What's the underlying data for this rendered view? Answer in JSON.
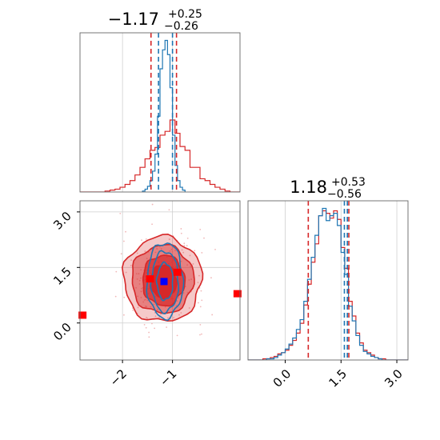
{
  "chart_data": [
    {
      "panel": "top-left",
      "type": "histogram",
      "title": {
        "median": "−1.17",
        "plus": "+0.25",
        "minus": "−0.26"
      },
      "xlim": [
        -2.85,
        0.35
      ],
      "grid": true,
      "red_lines": [
        -1.43,
        -0.92
      ],
      "blue_lines": [
        -1.28,
        -1.0
      ],
      "series": [
        {
          "color": "#d62728",
          "bins": [
            -2.85,
            -2.75,
            -2.65,
            -2.55,
            -2.45,
            -2.35,
            -2.25,
            -2.15,
            -2.05,
            -1.95,
            -1.85,
            -1.75,
            -1.65,
            -1.55,
            -1.45,
            -1.35,
            -1.25,
            -1.15,
            -1.05,
            -0.95,
            -0.85,
            -0.75,
            -0.65,
            -0.55,
            -0.45,
            -0.35,
            -0.25,
            -0.15,
            -0.05,
            0.05,
            0.15,
            0.25,
            0.35
          ],
          "counts": [
            0,
            0,
            0,
            0,
            0,
            1,
            2,
            3,
            5,
            8,
            12,
            18,
            26,
            35,
            44,
            47,
            60,
            64,
            76,
            62,
            48,
            44,
            26,
            26,
            14,
            12,
            8,
            5,
            3,
            1,
            0,
            0
          ]
        },
        {
          "color": "#1f77b4",
          "bins": [
            -1.6,
            -1.55,
            -1.5,
            -1.45,
            -1.4,
            -1.35,
            -1.3,
            -1.25,
            -1.2,
            -1.15,
            -1.1,
            -1.05,
            -1.0,
            -0.95,
            -0.9,
            -0.85,
            -0.8,
            -0.75
          ],
          "counts": [
            1,
            3,
            6,
            12,
            22,
            40,
            80,
            130,
            150,
            160,
            145,
            110,
            60,
            28,
            12,
            5,
            2
          ]
        }
      ],
      "ticks": []
    },
    {
      "panel": "bottom-left",
      "type": "scatter",
      "xlim": [
        -2.85,
        0.35
      ],
      "ylim": [
        -1.0,
        3.3
      ],
      "grid": true,
      "xticks": [
        -2,
        -1
      ],
      "xtick_labels": [
        "−2",
        "−1"
      ],
      "yticks": [
        0.0,
        1.5,
        3.0
      ],
      "ytick_labels": [
        "0.0",
        "1.5",
        "3.0"
      ],
      "center_marker": {
        "x": -1.17,
        "y": 1.12,
        "color": "#0000ff"
      },
      "red_markers": [
        {
          "x": -2.8,
          "y": 0.2
        },
        {
          "x": 0.3,
          "y": 0.78
        },
        {
          "x": -1.45,
          "y": 1.18
        },
        {
          "x": -0.9,
          "y": 1.36
        }
      ],
      "contours_red": [
        {
          "cx": -1.2,
          "cy": 1.18,
          "rx": 0.78,
          "ry": 1.15
        },
        {
          "cx": -1.2,
          "cy": 1.18,
          "rx": 0.62,
          "ry": 0.92
        },
        {
          "cx": -1.18,
          "cy": 1.15,
          "rx": 0.42,
          "ry": 0.68
        },
        {
          "cx": -1.18,
          "cy": 1.12,
          "rx": 0.26,
          "ry": 0.45
        }
      ],
      "contours_blue": [
        {
          "cx": -1.15,
          "cy": 1.15,
          "rx": 0.36,
          "ry": 1.02
        },
        {
          "cx": -1.15,
          "cy": 1.12,
          "rx": 0.27,
          "ry": 0.82
        },
        {
          "cx": -1.15,
          "cy": 1.12,
          "rx": 0.16,
          "ry": 0.5
        }
      ]
    },
    {
      "panel": "bottom-right",
      "type": "histogram",
      "title": {
        "median": "1.18",
        "plus": "+0.53",
        "minus": "−0.56"
      },
      "xlim": [
        -1.0,
        3.3
      ],
      "grid": true,
      "xticks": [
        0.0,
        1.5,
        3.0
      ],
      "xtick_labels": [
        "0.0",
        "1.5",
        "3.0"
      ],
      "red_lines": [
        0.62,
        1.71
      ],
      "blue_lines": [
        1.59,
        1.67
      ],
      "series": [
        {
          "color": "#d62728",
          "bins": [
            -1.0,
            -0.9,
            -0.8,
            -0.7,
            -0.6,
            -0.5,
            -0.4,
            -0.3,
            -0.2,
            -0.1,
            0.0,
            0.1,
            0.2,
            0.3,
            0.4,
            0.5,
            0.6,
            0.7,
            0.8,
            0.9,
            1.0,
            1.1,
            1.2,
            1.3,
            1.4,
            1.5,
            1.6,
            1.7,
            1.8,
            1.9,
            2.0,
            2.1,
            2.2,
            2.3,
            2.4,
            2.5,
            2.6,
            2.7,
            2.8,
            2.9,
            3.0,
            3.1,
            3.2,
            3.3
          ],
          "counts": [
            0,
            0,
            0,
            0,
            1,
            1,
            2,
            3,
            5,
            6,
            8,
            12,
            16,
            22,
            30,
            45,
            62,
            80,
            95,
            118,
            122,
            120,
            116,
            122,
            115,
            92,
            75,
            48,
            36,
            22,
            14,
            8,
            6,
            4,
            2,
            1,
            1,
            0,
            0,
            0,
            0,
            0,
            0
          ]
        },
        {
          "color": "#1f77b4",
          "bins": [
            -1.0,
            -0.9,
            -0.8,
            -0.7,
            -0.6,
            -0.5,
            -0.4,
            -0.3,
            -0.2,
            -0.1,
            0.0,
            0.1,
            0.2,
            0.3,
            0.4,
            0.5,
            0.6,
            0.7,
            0.8,
            0.9,
            1.0,
            1.1,
            1.2,
            1.3,
            1.4,
            1.5,
            1.6,
            1.7,
            1.8,
            1.9,
            2.0,
            2.1,
            2.2,
            2.3,
            2.4,
            2.5,
            2.6,
            2.7,
            2.8,
            2.9,
            3.0,
            3.1,
            3.2,
            3.3
          ],
          "counts": [
            0,
            0,
            0,
            0,
            0,
            1,
            1,
            2,
            4,
            6,
            9,
            13,
            18,
            25,
            33,
            48,
            66,
            84,
            102,
            118,
            124,
            114,
            118,
            120,
            110,
            88,
            70,
            44,
            32,
            20,
            12,
            7,
            5,
            3,
            2,
            1,
            0,
            0,
            0,
            0,
            0,
            0,
            0
          ]
        }
      ]
    }
  ]
}
